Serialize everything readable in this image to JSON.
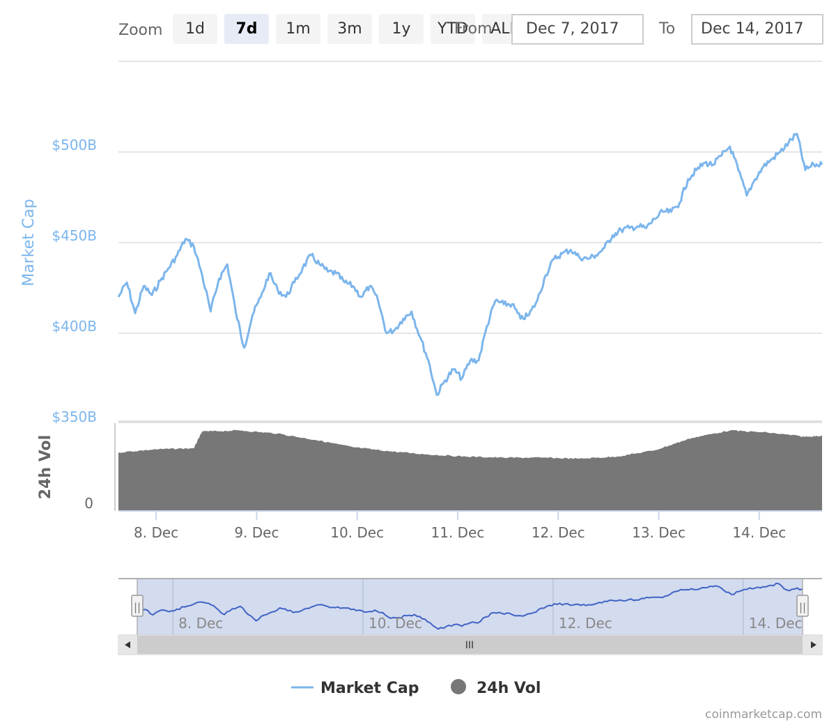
{
  "range_selector": {
    "zoom_label": "Zoom",
    "buttons": [
      {
        "label": "1d",
        "selected": false
      },
      {
        "label": "7d",
        "selected": true
      },
      {
        "label": "1m",
        "selected": false
      },
      {
        "label": "3m",
        "selected": false
      },
      {
        "label": "1y",
        "selected": false
      },
      {
        "label": "YTD",
        "selected": false
      },
      {
        "label": "ALL",
        "selected": false
      }
    ],
    "from_label": "From",
    "from_value": "Dec 7, 2017",
    "to_label": "To",
    "to_value": "Dec 14, 2017"
  },
  "chart_data": {
    "type": "line",
    "x_range": [
      "2017-12-07T15:00",
      "2017-12-14T15:00"
    ],
    "x_ticks": [
      "8. Dec",
      "9. Dec",
      "10. Dec",
      "11. Dec",
      "12. Dec",
      "13. Dec",
      "14. Dec"
    ],
    "grid": true,
    "legend_position": "bottom-center",
    "market_cap": {
      "name": "Market Cap",
      "axis_title": "Market Cap",
      "unit": "USD billions",
      "ylim": [
        350,
        550
      ],
      "tick_labels": [
        "$350B",
        "$400B",
        "$450B",
        "$500B"
      ],
      "tick_values": [
        350,
        400,
        450,
        500
      ],
      "color": "#7cb5ec",
      "points": [
        [
          "2017-12-07T15:00",
          420
        ],
        [
          "2017-12-07T17:00",
          428
        ],
        [
          "2017-12-07T19:00",
          411
        ],
        [
          "2017-12-07T21:00",
          426
        ],
        [
          "2017-12-07T23:00",
          421
        ],
        [
          "2017-12-08T01:00",
          429
        ],
        [
          "2017-12-08T03:00",
          436
        ],
        [
          "2017-12-08T05:00",
          443
        ],
        [
          "2017-12-08T07:00",
          452
        ],
        [
          "2017-12-08T09:00",
          448
        ],
        [
          "2017-12-08T11:00",
          432
        ],
        [
          "2017-12-08T13:00",
          412
        ],
        [
          "2017-12-08T15:00",
          430
        ],
        [
          "2017-12-08T17:00",
          438
        ],
        [
          "2017-12-08T19:00",
          412
        ],
        [
          "2017-12-08T21:00",
          392
        ],
        [
          "2017-12-08T23:00",
          410
        ],
        [
          "2017-12-09T01:00",
          420
        ],
        [
          "2017-12-09T03:00",
          433
        ],
        [
          "2017-12-09T05:00",
          424
        ],
        [
          "2017-12-09T07:00",
          420
        ],
        [
          "2017-12-09T09:00",
          428
        ],
        [
          "2017-12-09T11:00",
          436
        ],
        [
          "2017-12-09T13:00",
          443
        ],
        [
          "2017-12-09T15:00",
          438
        ],
        [
          "2017-12-09T17:00",
          434
        ],
        [
          "2017-12-09T19:00",
          433
        ],
        [
          "2017-12-09T21:00",
          428
        ],
        [
          "2017-12-09T23:00",
          426
        ],
        [
          "2017-12-10T01:00",
          420
        ],
        [
          "2017-12-10T03:00",
          426
        ],
        [
          "2017-12-10T05:00",
          418
        ],
        [
          "2017-12-10T07:00",
          400
        ],
        [
          "2017-12-10T09:00",
          402
        ],
        [
          "2017-12-10T11:00",
          408
        ],
        [
          "2017-12-10T13:00",
          412
        ],
        [
          "2017-12-10T15:00",
          398
        ],
        [
          "2017-12-10T17:00",
          385
        ],
        [
          "2017-12-10T19:00",
          366
        ],
        [
          "2017-12-10T21:00",
          374
        ],
        [
          "2017-12-10T23:00",
          380
        ],
        [
          "2017-12-11T01:00",
          375
        ],
        [
          "2017-12-11T03:00",
          385
        ],
        [
          "2017-12-11T05:00",
          385
        ],
        [
          "2017-12-11T07:00",
          404
        ],
        [
          "2017-12-11T09:00",
          418
        ],
        [
          "2017-12-11T11:00",
          416
        ],
        [
          "2017-12-11T13:00",
          416
        ],
        [
          "2017-12-11T15:00",
          408
        ],
        [
          "2017-12-11T17:00",
          410
        ],
        [
          "2017-12-11T19:00",
          418
        ],
        [
          "2017-12-11T21:00",
          432
        ],
        [
          "2017-12-11T23:00",
          441
        ],
        [
          "2017-12-12T01:00",
          444
        ],
        [
          "2017-12-12T03:00",
          446
        ],
        [
          "2017-12-12T05:00",
          442
        ],
        [
          "2017-12-12T07:00",
          441
        ],
        [
          "2017-12-12T09:00",
          443
        ],
        [
          "2017-12-12T11:00",
          447
        ],
        [
          "2017-12-12T13:00",
          454
        ],
        [
          "2017-12-12T15:00",
          457
        ],
        [
          "2017-12-12T17:00",
          458
        ],
        [
          "2017-12-12T19:00",
          459
        ],
        [
          "2017-12-12T21:00",
          458
        ],
        [
          "2017-12-12T23:00",
          463
        ],
        [
          "2017-12-13T01:00",
          467
        ],
        [
          "2017-12-13T03:00",
          467
        ],
        [
          "2017-12-13T05:00",
          472
        ],
        [
          "2017-12-13T07:00",
          485
        ],
        [
          "2017-12-13T09:00",
          490
        ],
        [
          "2017-12-13T11:00",
          494
        ],
        [
          "2017-12-13T13:00",
          493
        ],
        [
          "2017-12-13T15:00",
          498
        ],
        [
          "2017-12-13T17:00",
          503
        ],
        [
          "2017-12-13T19:00",
          490
        ],
        [
          "2017-12-13T21:00",
          476
        ],
        [
          "2017-12-13T23:00",
          485
        ],
        [
          "2017-12-14T01:00",
          492
        ],
        [
          "2017-12-14T03:00",
          496
        ],
        [
          "2017-12-14T05:00",
          500
        ],
        [
          "2017-12-14T07:00",
          505
        ],
        [
          "2017-12-14T09:00",
          510
        ],
        [
          "2017-12-14T11:00",
          490
        ],
        [
          "2017-12-14T13:00",
          493
        ],
        [
          "2017-12-14T15:00",
          493
        ]
      ]
    },
    "volume": {
      "name": "24h Vol",
      "axis_title": "24h Vol",
      "tick_labels": [
        "0"
      ],
      "tick_values": [
        0
      ],
      "ylim": [
        0,
        40
      ],
      "color": "#777777",
      "points": [
        [
          "2017-12-07T15:00",
          28
        ],
        [
          "2017-12-08T00:00",
          29.5
        ],
        [
          "2017-12-08T09:00",
          30
        ],
        [
          "2017-12-08T11:00",
          38
        ],
        [
          "2017-12-08T20:00",
          38.5
        ],
        [
          "2017-12-09T05:00",
          37
        ],
        [
          "2017-12-09T14:00",
          34
        ],
        [
          "2017-12-09T23:00",
          30.5
        ],
        [
          "2017-12-10T08:00",
          28.5
        ],
        [
          "2017-12-10T17:00",
          27
        ],
        [
          "2017-12-11T02:00",
          26
        ],
        [
          "2017-12-11T11:00",
          25.5
        ],
        [
          "2017-12-11T20:00",
          25.5
        ],
        [
          "2017-12-12T05:00",
          25
        ],
        [
          "2017-12-12T14:00",
          26
        ],
        [
          "2017-12-12T23:00",
          29
        ],
        [
          "2017-12-13T08:00",
          35
        ],
        [
          "2017-12-13T17:00",
          38.5
        ],
        [
          "2017-12-14T02:00",
          37.5
        ],
        [
          "2017-12-14T11:00",
          35.5
        ],
        [
          "2017-12-14T15:00",
          36
        ]
      ]
    },
    "navigator": {
      "x_labels": [
        "8. Dec",
        "10. Dec",
        "12. Dec",
        "14. Dec"
      ],
      "handle_glyph": "||",
      "scroll_grip": "III"
    }
  },
  "legend": [
    {
      "label": "Market Cap",
      "color": "#7cb5ec",
      "symbol": "line"
    },
    {
      "label": "24h Vol",
      "color": "#777777",
      "symbol": "circle"
    }
  ],
  "credits": "coinmarketcap.com"
}
